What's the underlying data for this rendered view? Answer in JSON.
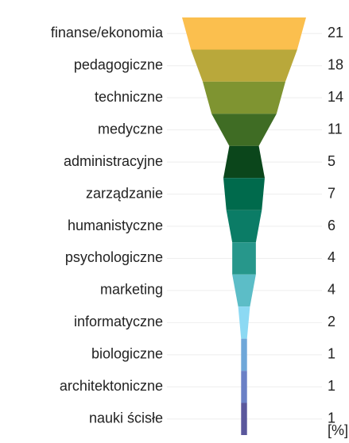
{
  "chart_data": {
    "type": "funnel",
    "categories": [
      "finanse/ekonomia",
      "pedagogiczne",
      "techniczne",
      "medyczne",
      "administracyjne",
      "zarządzanie",
      "humanistyczne",
      "psychologiczne",
      "marketing",
      "informatyczne",
      "biologiczne",
      "architektoniczne",
      "nauki ścisłe"
    ],
    "values": [
      21,
      18,
      14,
      11,
      5,
      7,
      6,
      4,
      4,
      2,
      1,
      1,
      1
    ],
    "colors": [
      "#fbbf4e",
      "#b9a83b",
      "#7f9431",
      "#3f6c24",
      "#0b461b",
      "#006a4c",
      "#0b7c66",
      "#27978b",
      "#5cbdc7",
      "#8cd9f3",
      "#6fa7d9",
      "#6a80c6",
      "#5a579c"
    ],
    "value_axis_label": "[%]"
  }
}
